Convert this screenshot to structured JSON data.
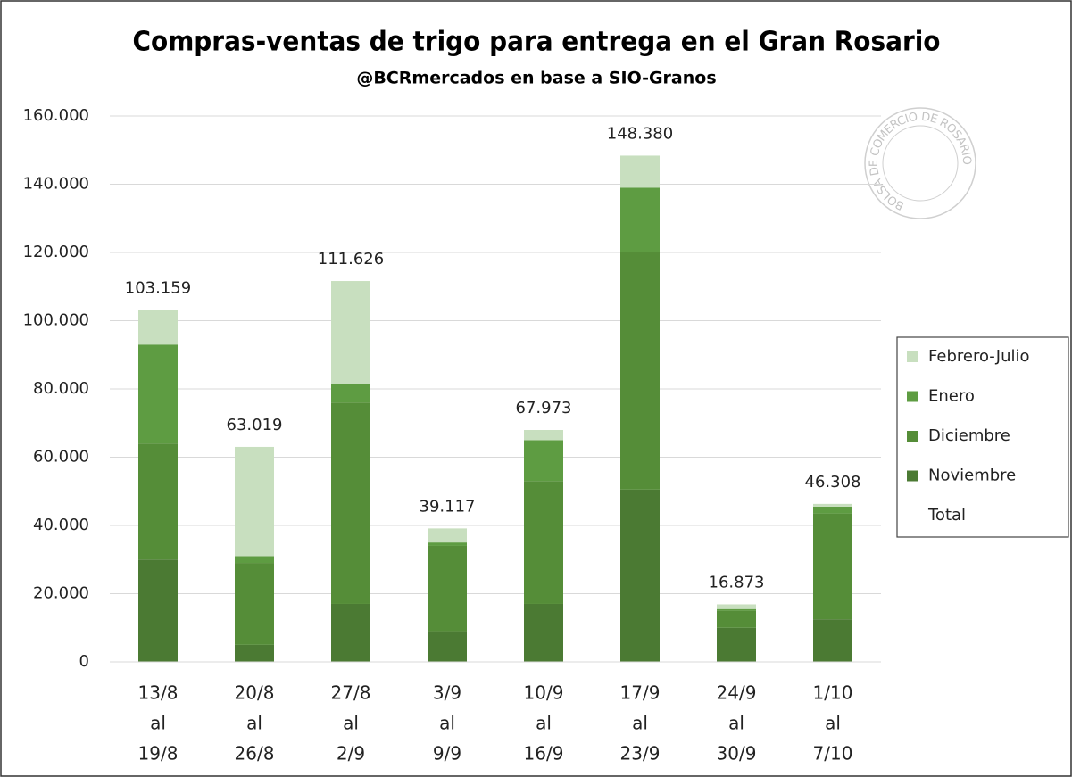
{
  "chart_data": {
    "type": "stacked_bar",
    "title": "Compras-ventas de trigo para entrega en el Gran Rosario",
    "subtitle": "@BCRmercados en base a SIO-Granos",
    "watermark": "BOLSA DE COMERCIO DE ROSARIO",
    "categories": [
      [
        "13/8",
        "al",
        "19/8"
      ],
      [
        "20/8",
        "al",
        "26/8"
      ],
      [
        "27/8",
        "al",
        "2/9"
      ],
      [
        "3/9",
        "al",
        "9/9"
      ],
      [
        "10/9",
        "al",
        "16/9"
      ],
      [
        "17/9",
        "al",
        "23/9"
      ],
      [
        "24/9",
        "al",
        "30/9"
      ],
      [
        "1/10",
        "al",
        "7/10"
      ]
    ],
    "series": [
      {
        "name": "Noviembre",
        "color": "#4b7a33",
        "values": [
          30000,
          5000,
          17000,
          9000,
          17000,
          50500,
          10000,
          12500
        ]
      },
      {
        "name": "Diciembre",
        "color": "#558d38",
        "values": [
          34000,
          24000,
          59000,
          25000,
          36000,
          69500,
          5000,
          31000
        ]
      },
      {
        "name": "Enero",
        "color": "#5e9c42",
        "values": [
          29000,
          2000,
          5500,
          1000,
          12000,
          19000,
          500,
          2000
        ]
      },
      {
        "name": "Febrero-Julio",
        "color": "#c8dfbf",
        "values": [
          10159,
          32019,
          30126,
          4117,
          2973,
          9380,
          1373,
          808
        ]
      },
      {
        "name": "Total",
        "color": null,
        "values": [
          103159,
          63019,
          111626,
          39117,
          67973,
          148380,
          16873,
          46308
        ],
        "value_labels": [
          "103.159",
          "63.019",
          "111.626",
          "39.117",
          "67.973",
          "148.380",
          "16.873",
          "46.308"
        ]
      }
    ],
    "ylim": [
      0,
      160000
    ],
    "yticks": [
      {
        "value": 0,
        "label": "0"
      },
      {
        "value": 20000,
        "label": "20.000"
      },
      {
        "value": 40000,
        "label": "40.000"
      },
      {
        "value": 60000,
        "label": "60.000"
      },
      {
        "value": 80000,
        "label": "80.000"
      },
      {
        "value": 100000,
        "label": "100.000"
      },
      {
        "value": 120000,
        "label": "120.000"
      },
      {
        "value": 140000,
        "label": "140.000"
      },
      {
        "value": 160000,
        "label": "160.000"
      }
    ],
    "grid": true,
    "legend": "right"
  }
}
